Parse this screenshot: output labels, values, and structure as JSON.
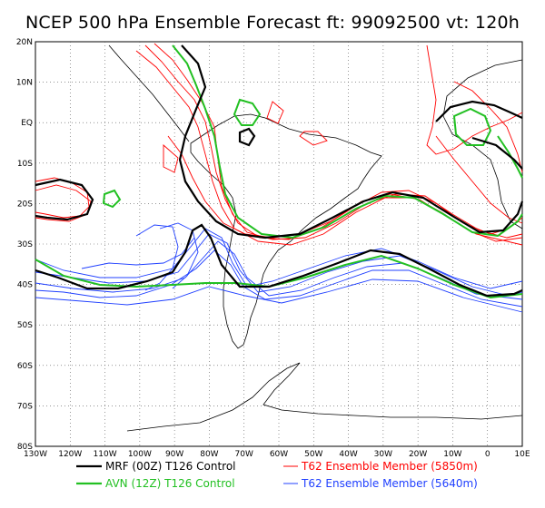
{
  "title": "NCEP 500 hPa Ensemble Forecast  ft: 99092500 vt: 120h",
  "axes": {
    "lon_labels": [
      "130W",
      "120W",
      "110W",
      "100W",
      "90W",
      "80W",
      "70W",
      "60W",
      "50W",
      "40W",
      "30W",
      "20W",
      "10W",
      "0",
      "10E"
    ],
    "lat_labels": [
      "20N",
      "10N",
      "EQ",
      "10S",
      "20S",
      "30S",
      "40S",
      "50S",
      "60S",
      "70S",
      "80S"
    ],
    "lon_range": [
      -130,
      10
    ],
    "lat_range": [
      -80,
      20
    ],
    "grid": "dotted"
  },
  "legend": [
    {
      "label": "MRF (00Z) T126 Control",
      "color": "#000000"
    },
    {
      "label": "AVN (12Z) T126 Control",
      "color": "#22c022"
    },
    {
      "label": "T62 Ensemble Member (5850m)",
      "color": "#ff0000"
    },
    {
      "label": "T62 Ensemble Member (5640m)",
      "color": "#2040ff"
    }
  ],
  "colors": {
    "mrf": "#000000",
    "avn": "#22c022",
    "ens_5850": "#ff0000",
    "ens_5640": "#2040ff"
  }
}
